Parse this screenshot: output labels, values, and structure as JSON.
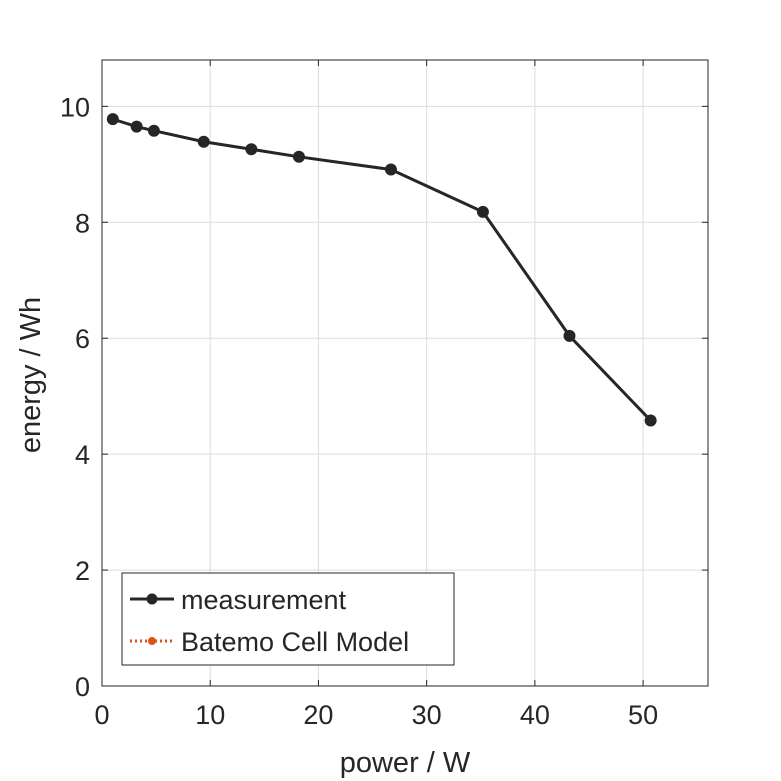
{
  "chart_data": {
    "type": "line",
    "title": "",
    "xlabel": "power / W",
    "ylabel": "energy / Wh",
    "xlim": [
      0,
      56
    ],
    "ylim": [
      0,
      10.8
    ],
    "xticks": [
      0,
      10,
      20,
      30,
      40,
      50
    ],
    "yticks": [
      0,
      2,
      4,
      6,
      8,
      10
    ],
    "grid": true,
    "legend_position": "bottom-left",
    "series": [
      {
        "name": "measurement",
        "color": "#262626",
        "style": "solid",
        "marker": "circle",
        "x": [
          1.0,
          3.2,
          4.8,
          9.4,
          13.8,
          18.2,
          26.7,
          35.2,
          43.2,
          50.7
        ],
        "y": [
          9.78,
          9.65,
          9.58,
          9.39,
          9.26,
          9.13,
          8.91,
          8.18,
          6.04,
          4.58
        ]
      },
      {
        "name": "Batemo Cell Model",
        "color": "#D95319",
        "style": "dotted",
        "marker": "circle",
        "x": [],
        "y": []
      }
    ]
  }
}
